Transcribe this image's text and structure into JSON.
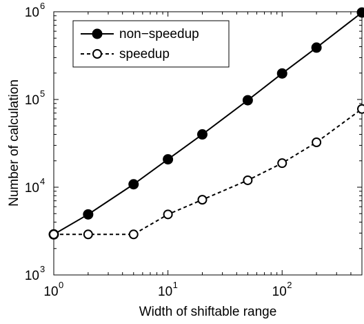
{
  "chart_data": {
    "type": "line",
    "title": "",
    "xlabel": "Width of shiftable range",
    "ylabel": "Number of calculation",
    "x_scale": "log",
    "y_scale": "log",
    "xlim": [
      1,
      500
    ],
    "ylim": [
      1000,
      1000000
    ],
    "grid": false,
    "legend_position": "top-left",
    "x_ticks": [
      {
        "base": "10",
        "exp": "0",
        "value": 1
      },
      {
        "base": "10",
        "exp": "1",
        "value": 10
      },
      {
        "base": "10",
        "exp": "2",
        "value": 100
      }
    ],
    "y_ticks": [
      {
        "base": "10",
        "exp": "3",
        "value": 1000
      },
      {
        "base": "10",
        "exp": "4",
        "value": 10000
      },
      {
        "base": "10",
        "exp": "5",
        "value": 100000
      },
      {
        "base": "10",
        "exp": "6",
        "value": 1000000
      }
    ],
    "series": [
      {
        "name": "non−speedup",
        "style": "solid",
        "marker": "filled-circle",
        "color": "#000000",
        "x": [
          1,
          2,
          5,
          10,
          20,
          50,
          100,
          200,
          500
        ],
        "y": [
          2900,
          4900,
          10800,
          20800,
          40000,
          98000,
          198000,
          390000,
          980000
        ]
      },
      {
        "name": "speedup",
        "style": "dashed",
        "marker": "open-circle",
        "color": "#000000",
        "x": [
          1,
          2,
          5,
          10,
          20,
          50,
          100,
          200,
          500
        ],
        "y": [
          2900,
          2900,
          2900,
          4900,
          7200,
          12000,
          18800,
          32500,
          78000
        ]
      }
    ]
  }
}
